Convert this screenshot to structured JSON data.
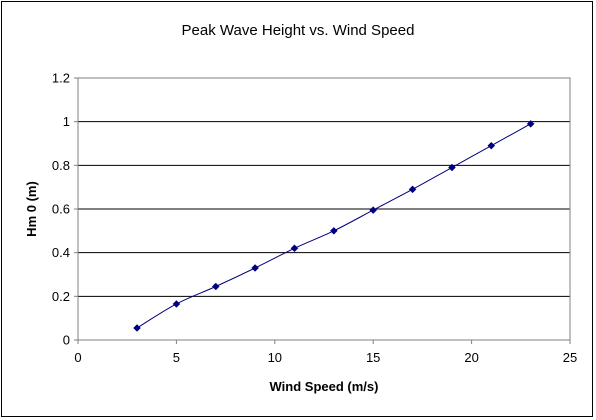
{
  "chart_data": {
    "type": "scatter",
    "title": "Peak Wave Height vs. Wind Speed",
    "xlabel": "Wind Speed (m/s)",
    "ylabel": "Hm 0 (m)",
    "xlim": [
      0,
      25
    ],
    "ylim": [
      0,
      1.2
    ],
    "xticks": [
      "0",
      "5",
      "10",
      "15",
      "20",
      "25"
    ],
    "yticks": [
      "0",
      "0.2",
      "0.4",
      "0.6",
      "0.8",
      "1",
      "1.2"
    ],
    "grid": "horizontal",
    "legend": "none",
    "series": [
      {
        "color": "#000080",
        "marker": "diamond",
        "line": "smooth",
        "x": [
          3,
          5,
          7,
          9,
          11,
          13,
          15,
          17,
          19,
          21,
          23
        ],
        "y": [
          0.055,
          0.165,
          0.245,
          0.33,
          0.42,
          0.5,
          0.595,
          0.69,
          0.79,
          0.89,
          0.99
        ]
      }
    ]
  }
}
